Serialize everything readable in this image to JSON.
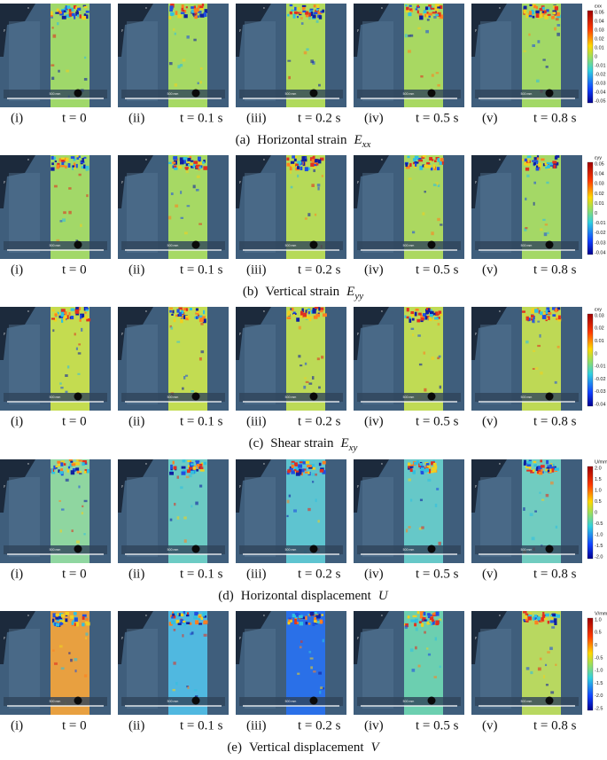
{
  "rows": [
    {
      "panels": [
        {
          "index": "(i)",
          "time": "t = 0"
        },
        {
          "index": "(ii)",
          "time": "t = 0.1 s"
        },
        {
          "index": "(iii)",
          "time": "t = 0.2 s"
        },
        {
          "index": "(iv)",
          "time": "t = 0.5 s"
        },
        {
          "index": "(v)",
          "time": "t = 0.8 s"
        }
      ],
      "caption": {
        "label": "(a)",
        "text": "Horizontal strain",
        "symbol": "E",
        "subscript": "xx"
      },
      "colorbar": {
        "title": "εxx",
        "ticks": [
          "0.05",
          "0.04",
          "0.03",
          "0.02",
          "0.01",
          "0",
          "-0.01",
          "-0.02",
          "-0.03",
          "-0.04",
          "-0.05"
        ]
      }
    },
    {
      "panels": [
        {
          "index": "(i)",
          "time": "t = 0"
        },
        {
          "index": "(ii)",
          "time": "t = 0.1 s"
        },
        {
          "index": "(iii)",
          "time": "t = 0.2 s"
        },
        {
          "index": "(iv)",
          "time": "t = 0.5 s"
        },
        {
          "index": "(v)",
          "time": "t = 0.8 s"
        }
      ],
      "caption": {
        "label": "(b)",
        "text": "Vertical strain",
        "symbol": "E",
        "subscript": "yy"
      },
      "colorbar": {
        "title": "εyy",
        "ticks": [
          "0.05",
          "0.04",
          "0.03",
          "0.02",
          "0.01",
          "0",
          "-0.01",
          "-0.02",
          "-0.03",
          "-0.04"
        ]
      }
    },
    {
      "panels": [
        {
          "index": "(i)",
          "time": "t = 0"
        },
        {
          "index": "(ii)",
          "time": "t = 0.1 s"
        },
        {
          "index": "(iii)",
          "time": "t = 0.2 s"
        },
        {
          "index": "(iv)",
          "time": "t = 0.5 s"
        },
        {
          "index": "(v)",
          "time": "t = 0.8 s"
        }
      ],
      "caption": {
        "label": "(c)",
        "text": "Shear strain",
        "symbol": "E",
        "subscript": "xy"
      },
      "colorbar": {
        "title": "εxy",
        "ticks": [
          "0.03",
          "0.02",
          "0.01",
          "0",
          "-0.01",
          "-0.02",
          "-0.03",
          "-0.04"
        ]
      }
    },
    {
      "panels": [
        {
          "index": "(i)",
          "time": "t = 0"
        },
        {
          "index": "(ii)",
          "time": "t = 0.1 s"
        },
        {
          "index": "(iii)",
          "time": "t = 0.2 s"
        },
        {
          "index": "(iv)",
          "time": "t = 0.5 s"
        },
        {
          "index": "(v)",
          "time": "t = 0.8 s"
        }
      ],
      "caption": {
        "label": "(d)",
        "text": "Horizontal displacement",
        "symbol": "U"
      },
      "colorbar": {
        "title": "U/mm",
        "ticks": [
          "2.0",
          "1.5",
          "1.0",
          "0.5",
          "0",
          "-0.5",
          "-1.0",
          "-1.5",
          "-2.0"
        ]
      }
    },
    {
      "panels": [
        {
          "index": "(i)",
          "time": "t = 0"
        },
        {
          "index": "(ii)",
          "time": "t = 0.1 s"
        },
        {
          "index": "(iii)",
          "time": "t = 0.2 s"
        },
        {
          "index": "(iv)",
          "time": "t = 0.5 s"
        },
        {
          "index": "(v)",
          "time": "t = 0.8 s"
        }
      ],
      "caption": {
        "label": "(e)",
        "text": "Vertical displacement",
        "symbol": "V"
      },
      "colorbar": {
        "title": "V/mm",
        "ticks": [
          "1.0",
          "0.5",
          "0",
          "-0.5",
          "-1.0",
          "-1.5",
          "-2.0",
          "-2.5"
        ]
      }
    }
  ],
  "axis_x": "x",
  "axis_y": "y",
  "scale_bar": "500 mm"
}
